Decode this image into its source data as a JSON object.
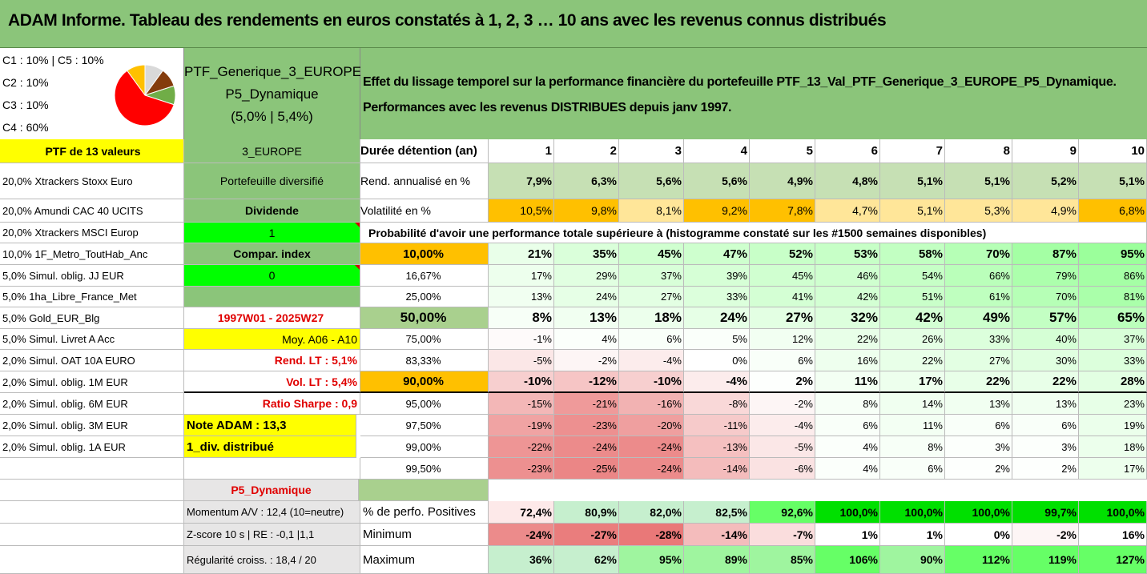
{
  "title": "ADAM Informe. Tableau des rendements en euros constatés à 1, 2, 3 … 10 ans avec les revenus connus distribués",
  "allocation": {
    "lines": [
      "C1 : 10% | C5 : 10%",
      "C2 : 10%",
      "C3 : 10%",
      "C4 : 60%"
    ],
    "pie_slices": [
      {
        "label": "C4",
        "value": 60,
        "color": "#ff0000"
      },
      {
        "label": "C3",
        "value": 10,
        "color": "#70ad47"
      },
      {
        "label": "C2",
        "value": 10,
        "color": "#843c0c"
      },
      {
        "label": "C1",
        "value": 10,
        "color": "#d9d9d9"
      },
      {
        "label": "C5",
        "value": 10,
        "color": "#ffc000"
      }
    ]
  },
  "portfolio": {
    "name_line1": "PTF_Generique_3_EUROPE_",
    "name_line2": "P5_Dynamique",
    "name_line3": "(5,0% | 5,4%)"
  },
  "description": {
    "line1": "Effet du lissage temporel sur la performance financière du portefeuille PTF_13_Val_PTF_Generique_3_EUROPE_P5_Dynamique.",
    "line2": "Performances avec les revenus DISTRIBUES depuis janv 1997."
  },
  "left_column": {
    "header": "PTF de 13 valeurs",
    "holdings": [
      "20,0% Xtrackers Stoxx Euro",
      "20,0% Amundi CAC 40 UCITS",
      "20,0% Xtrackers MSCI Europ",
      "10,0% 1F_Metro_ToutHab_Anc",
      "5,0% Simul. oblig. JJ EUR",
      "5,0% 1ha_Libre_France_Met",
      "5,0% Gold_EUR_Blg",
      "5,0% Simul. Livret A Acc",
      "2,0% Simul. OAT 10A EURO",
      "2,0% Simul. oblig. 1M EUR",
      "2,0% Simul. oblig. 6M EUR",
      "2,0% Simul. oblig. 3M EUR",
      "2,0% Simul. oblig. 1A EUR"
    ]
  },
  "middle_column": {
    "region": "3_EUROPE",
    "diversified": "Portefeuille diversifié",
    "dividend_label": "Dividende",
    "dividend_value": "1",
    "compar_label": "Compar. index",
    "compar_value": "0",
    "period": "1997W01 - 2025W27",
    "moy": "Moy. A06 - A10",
    "rend_lt": "Rend. LT : 5,1%",
    "vol_lt": "Vol. LT : 5,4%",
    "sharpe": "Ratio Sharpe : 0,9",
    "note": "Note ADAM : 13,3",
    "div": "1_div. distribué",
    "profile": "P5_Dynamique",
    "momentum": "Momentum A/V : 12,4 (10=neutre)",
    "zscore": "Z-score 10 s | RE : -0,1 |1,1",
    "regularite": "Régularité croiss. : 18,4 / 20"
  },
  "table": {
    "header_label": "Durée détention (an)",
    "years": [
      "1",
      "2",
      "3",
      "4",
      "5",
      "6",
      "7",
      "8",
      "9",
      "10"
    ],
    "rend_label": "Rend. annualisé en %",
    "rend": [
      "7,9%",
      "6,3%",
      "5,6%",
      "5,6%",
      "4,9%",
      "4,8%",
      "5,1%",
      "5,1%",
      "5,2%",
      "5,1%"
    ],
    "vol_label": "Volatilité en %",
    "vol": [
      "10,5%",
      "9,8%",
      "8,1%",
      "9,2%",
      "7,8%",
      "4,7%",
      "5,1%",
      "5,3%",
      "4,9%",
      "6,8%"
    ],
    "prob_title": "Probabilité d'avoir une performance totale supérieure à (histogramme constaté sur les #1500 semaines disponibles)",
    "prob_rows": [
      {
        "p": "10,00%",
        "vals": [
          "21%",
          "35%",
          "45%",
          "47%",
          "52%",
          "53%",
          "58%",
          "70%",
          "87%",
          "95%"
        ]
      },
      {
        "p": "16,67%",
        "vals": [
          "17%",
          "29%",
          "37%",
          "39%",
          "45%",
          "46%",
          "54%",
          "66%",
          "79%",
          "86%"
        ]
      },
      {
        "p": "25,00%",
        "vals": [
          "13%",
          "24%",
          "27%",
          "33%",
          "41%",
          "42%",
          "51%",
          "61%",
          "70%",
          "81%"
        ]
      },
      {
        "p": "50,00%",
        "vals": [
          "8%",
          "13%",
          "18%",
          "24%",
          "27%",
          "32%",
          "42%",
          "49%",
          "57%",
          "65%"
        ]
      },
      {
        "p": "75,00%",
        "vals": [
          "-1%",
          "4%",
          "6%",
          "5%",
          "12%",
          "22%",
          "26%",
          "33%",
          "40%",
          "37%"
        ]
      },
      {
        "p": "83,33%",
        "vals": [
          "-5%",
          "-2%",
          "-4%",
          "0%",
          "6%",
          "16%",
          "22%",
          "27%",
          "30%",
          "33%"
        ]
      },
      {
        "p": "90,00%",
        "vals": [
          "-10%",
          "-12%",
          "-10%",
          "-4%",
          "2%",
          "11%",
          "17%",
          "22%",
          "22%",
          "28%"
        ]
      },
      {
        "p": "95,00%",
        "vals": [
          "-15%",
          "-21%",
          "-16%",
          "-8%",
          "-2%",
          "8%",
          "14%",
          "13%",
          "13%",
          "23%"
        ]
      },
      {
        "p": "97,50%",
        "vals": [
          "-19%",
          "-23%",
          "-20%",
          "-11%",
          "-4%",
          "6%",
          "11%",
          "6%",
          "6%",
          "19%"
        ]
      },
      {
        "p": "99,00%",
        "vals": [
          "-22%",
          "-24%",
          "-24%",
          "-13%",
          "-5%",
          "4%",
          "8%",
          "3%",
          "3%",
          "18%"
        ]
      },
      {
        "p": "99,50%",
        "vals": [
          "-23%",
          "-25%",
          "-24%",
          "-14%",
          "-6%",
          "4%",
          "6%",
          "2%",
          "2%",
          "17%"
        ]
      }
    ],
    "pos_label": "% de perfo. Positives",
    "pos": [
      "72,4%",
      "80,9%",
      "82,0%",
      "82,5%",
      "92,6%",
      "100,0%",
      "100,0%",
      "100,0%",
      "99,7%",
      "100,0%"
    ],
    "min_label": "Minimum",
    "min": [
      "-24%",
      "-27%",
      "-28%",
      "-14%",
      "-7%",
      "1%",
      "1%",
      "0%",
      "-2%",
      "16%"
    ],
    "max_label": "Maximum",
    "max": [
      "36%",
      "62%",
      "95%",
      "89%",
      "85%",
      "106%",
      "90%",
      "112%",
      "119%",
      "127%"
    ]
  }
}
